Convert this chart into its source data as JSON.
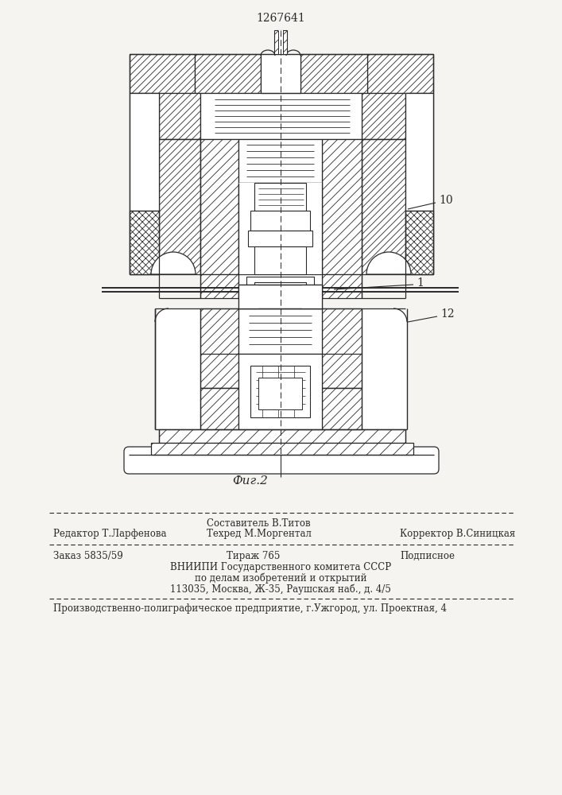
{
  "patent_number": "1267641",
  "figure_label": "Фиг.2",
  "label_1": "1",
  "label_10": "10",
  "label_12": "12",
  "bg_color": "#f5f4f0",
  "line_color": "#2a2a2a",
  "footer_editor": "Редактор Т.Ларфенова",
  "footer_comp_title": "Составитель В.Титов",
  "footer_tech": "Техред М.Моргентал",
  "footer_corrector": "Корректор В.Синицкая",
  "footer_order": "Заказ 5835/59",
  "footer_copies": "Тираж 765",
  "footer_subscription": "Подписное",
  "footer_vniipii1": "ВНИИПИ Государственного комитета СССР",
  "footer_vniipii2": "по делам изобретений и открытий",
  "footer_vniipii3": "113035, Москва, Ж-35, Раушская наб., д. 4/5",
  "footer_prod": "Производственно-полиграфическое предприятие, г.Ужгород, ул. Проектная, 4"
}
